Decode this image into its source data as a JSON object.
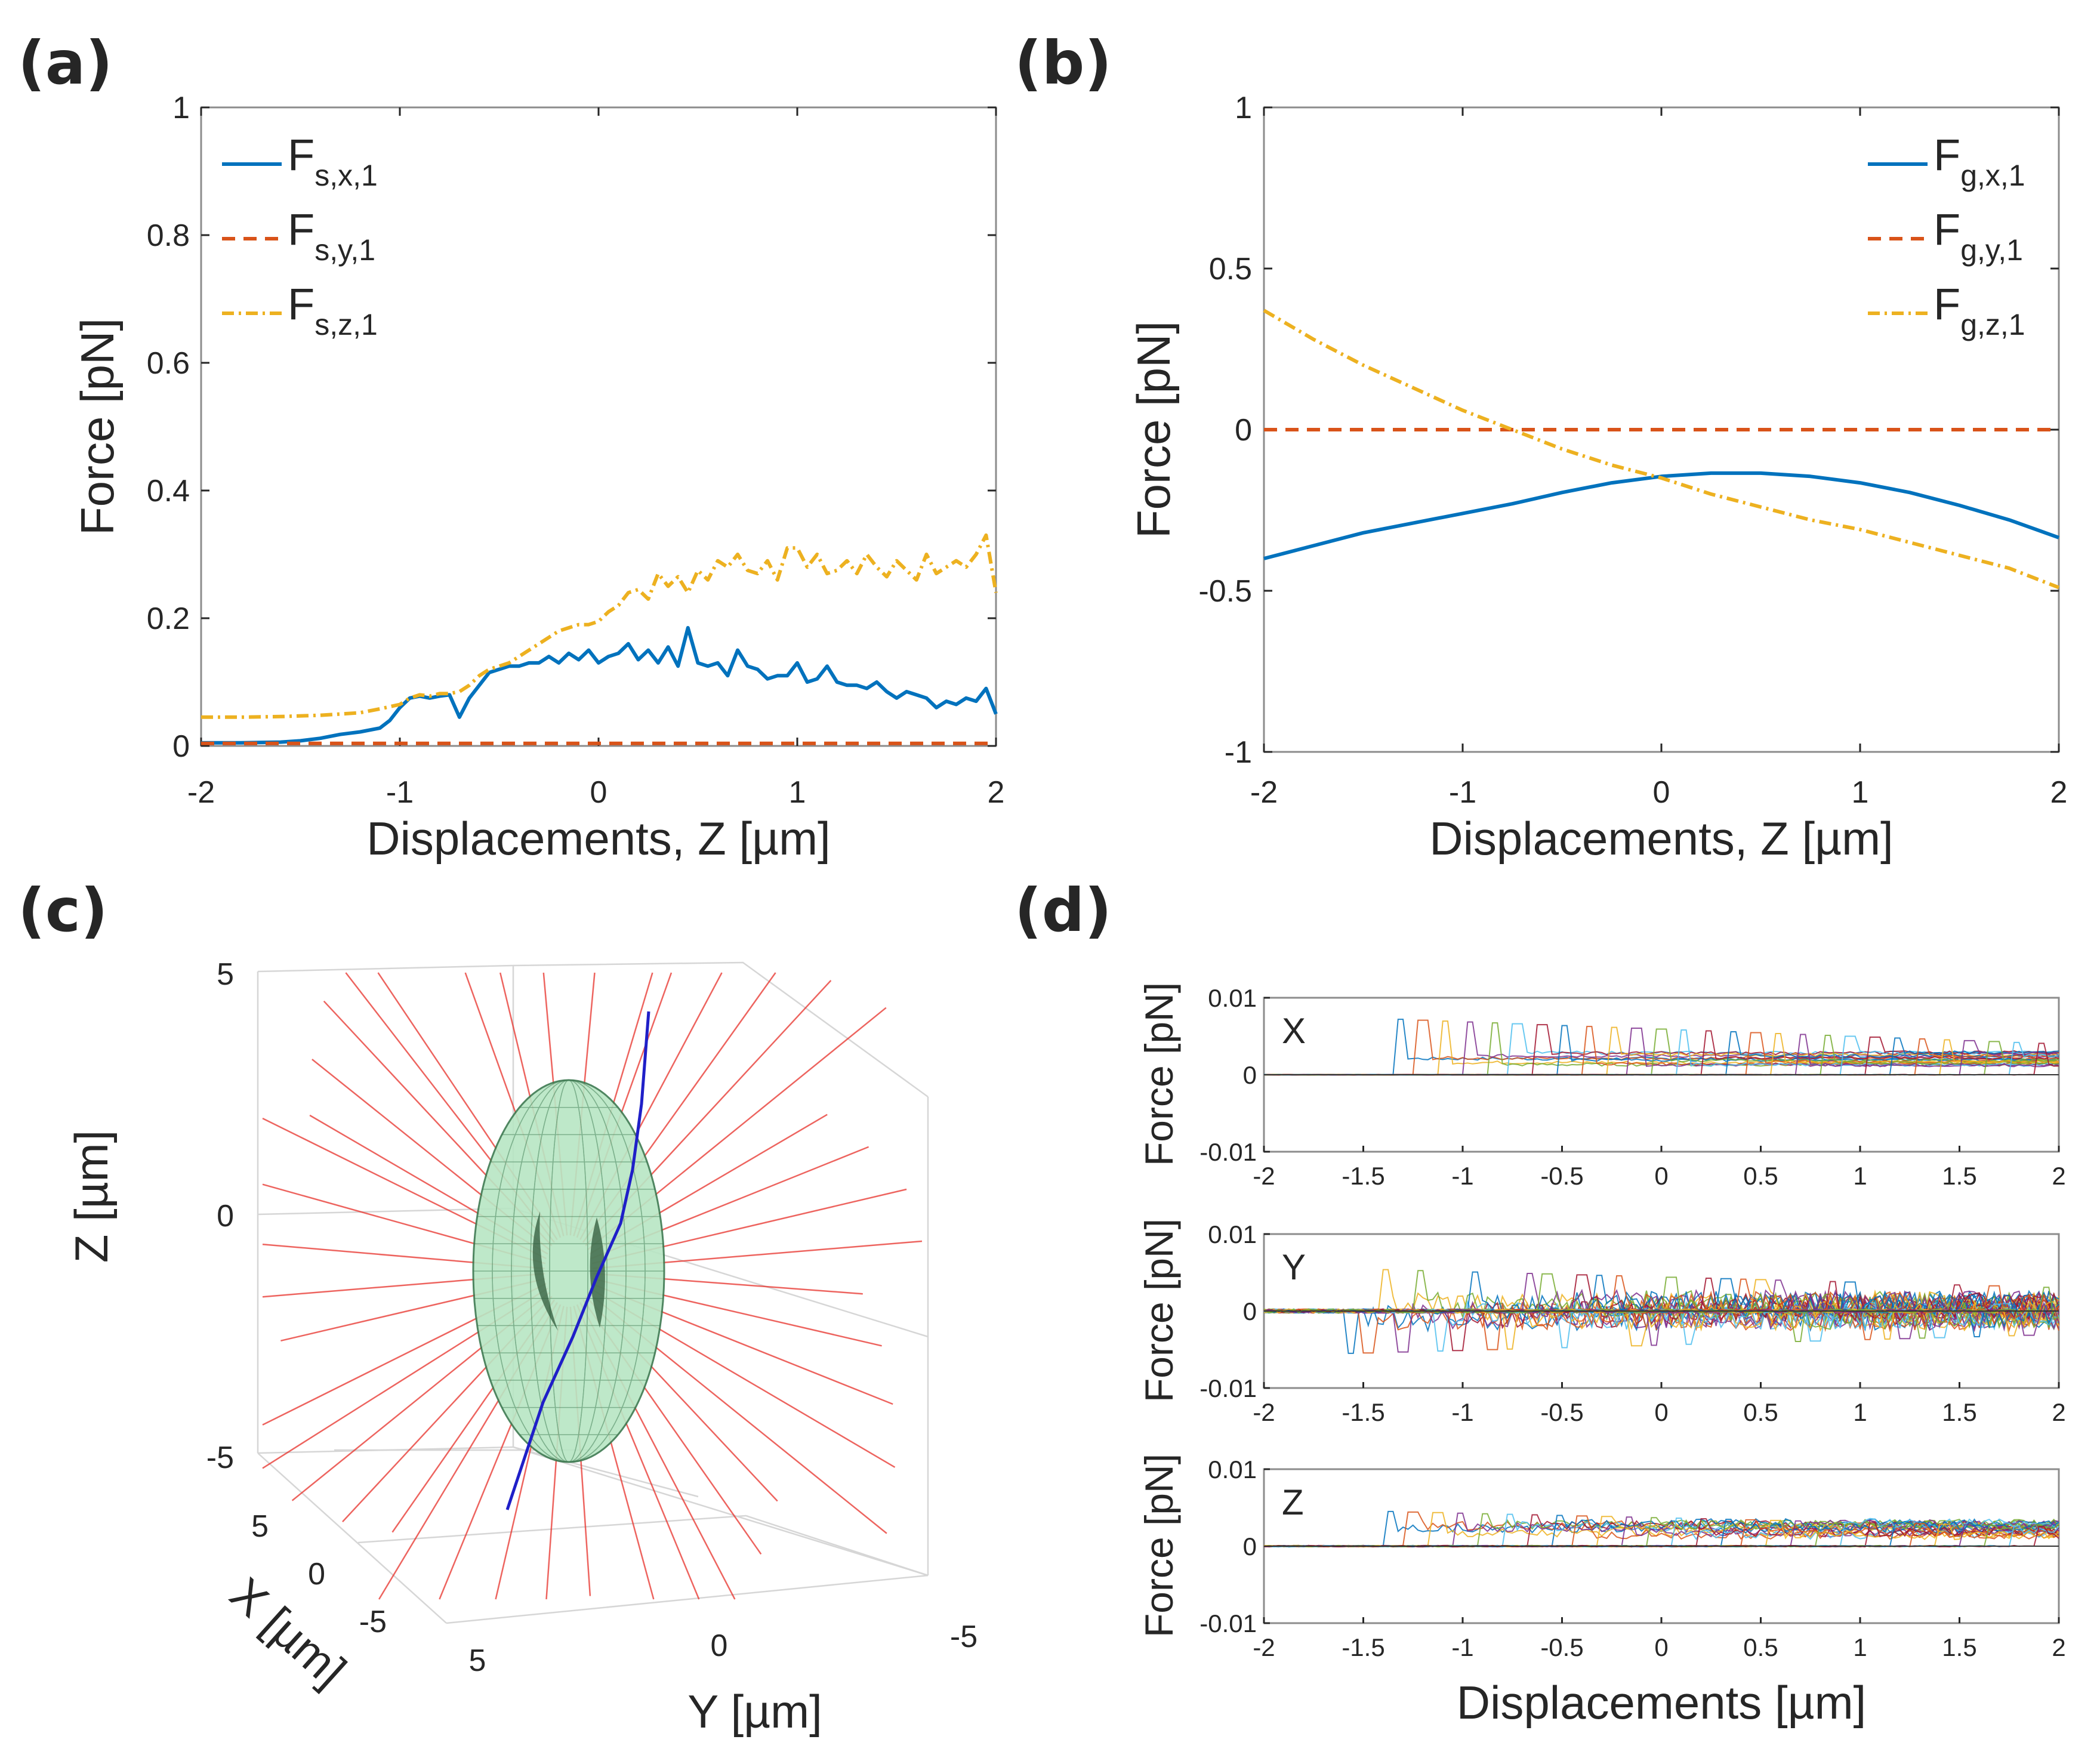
{
  "figure": {
    "panels": {
      "a": {
        "label": "(a)"
      },
      "b": {
        "label": "(b)"
      },
      "c": {
        "label": "(c)"
      },
      "d": {
        "label": "(d)"
      }
    }
  },
  "colors": {
    "blue": "#0072BD",
    "orange": "#D95319",
    "yellow": "#EDB120",
    "axis": "#262626",
    "frame": "#8c8c8c",
    "ellipsoid_fill": "#b8e6c4",
    "ellipsoid_mesh": "#3d7a50",
    "path3d": "#1f1fc8",
    "rays": "#e8312a"
  },
  "chart_data": [
    {
      "id": "a",
      "type": "line",
      "xlabel": "Displacements, Z  [µm]",
      "ylabel": "Force [pN]",
      "xlim": [
        -2,
        2
      ],
      "ylim": [
        0,
        1
      ],
      "xticks": [
        -2,
        -1,
        0,
        1,
        2
      ],
      "yticks": [
        0,
        0.2,
        0.4,
        0.6,
        0.8,
        1
      ],
      "xtick_labels": [
        "-2",
        "-1",
        "0",
        "1",
        "2"
      ],
      "ytick_labels": [
        "0",
        "0.2",
        "0.4",
        "0.6",
        "0.8",
        "1"
      ],
      "legend_position": "top-left",
      "series": [
        {
          "name": "F",
          "sub": "s,x,1",
          "style": "solid",
          "color": "blue",
          "x": [
            -2,
            -1.8,
            -1.6,
            -1.5,
            -1.4,
            -1.3,
            -1.2,
            -1.1,
            -1.05,
            -1.0,
            -0.95,
            -0.9,
            -0.85,
            -0.8,
            -0.75,
            -0.7,
            -0.65,
            -0.6,
            -0.55,
            -0.5,
            -0.45,
            -0.4,
            -0.35,
            -0.3,
            -0.25,
            -0.2,
            -0.15,
            -0.1,
            -0.05,
            0.0,
            0.05,
            0.1,
            0.15,
            0.2,
            0.25,
            0.3,
            0.35,
            0.4,
            0.45,
            0.5,
            0.55,
            0.6,
            0.65,
            0.7,
            0.75,
            0.8,
            0.85,
            0.9,
            0.95,
            1.0,
            1.05,
            1.1,
            1.15,
            1.2,
            1.25,
            1.3,
            1.35,
            1.4,
            1.45,
            1.5,
            1.55,
            1.6,
            1.65,
            1.7,
            1.75,
            1.8,
            1.85,
            1.9,
            1.95,
            2.0
          ],
          "values": [
            0.005,
            0.005,
            0.006,
            0.008,
            0.012,
            0.018,
            0.022,
            0.028,
            0.04,
            0.06,
            0.075,
            0.078,
            0.075,
            0.078,
            0.08,
            0.045,
            0.075,
            0.095,
            0.115,
            0.12,
            0.125,
            0.125,
            0.13,
            0.13,
            0.14,
            0.13,
            0.145,
            0.135,
            0.15,
            0.13,
            0.14,
            0.145,
            0.16,
            0.135,
            0.15,
            0.13,
            0.155,
            0.125,
            0.185,
            0.13,
            0.125,
            0.13,
            0.11,
            0.15,
            0.125,
            0.12,
            0.105,
            0.11,
            0.11,
            0.13,
            0.1,
            0.105,
            0.125,
            0.1,
            0.095,
            0.095,
            0.09,
            0.1,
            0.085,
            0.075,
            0.085,
            0.08,
            0.075,
            0.06,
            0.07,
            0.065,
            0.075,
            0.07,
            0.09,
            0.05
          ]
        },
        {
          "name": "F",
          "sub": "s,y,1",
          "style": "dashed",
          "color": "orange",
          "x": [
            -2,
            2
          ],
          "values": [
            0.004,
            0.004
          ]
        },
        {
          "name": "F",
          "sub": "s,z,1",
          "style": "dashdot",
          "color": "yellow",
          "x": [
            -2,
            -1.8,
            -1.6,
            -1.4,
            -1.2,
            -1.1,
            -1.0,
            -0.95,
            -0.9,
            -0.85,
            -0.8,
            -0.75,
            -0.7,
            -0.65,
            -0.6,
            -0.55,
            -0.5,
            -0.45,
            -0.4,
            -0.35,
            -0.3,
            -0.25,
            -0.2,
            -0.15,
            -0.1,
            -0.05,
            0.0,
            0.05,
            0.1,
            0.15,
            0.2,
            0.25,
            0.3,
            0.35,
            0.4,
            0.45,
            0.5,
            0.55,
            0.6,
            0.65,
            0.7,
            0.75,
            0.8,
            0.85,
            0.9,
            0.95,
            1.0,
            1.05,
            1.1,
            1.15,
            1.2,
            1.25,
            1.3,
            1.35,
            1.4,
            1.45,
            1.5,
            1.55,
            1.6,
            1.65,
            1.7,
            1.75,
            1.8,
            1.85,
            1.9,
            1.95,
            2.0
          ],
          "values": [
            0.045,
            0.045,
            0.046,
            0.048,
            0.052,
            0.058,
            0.065,
            0.075,
            0.08,
            0.078,
            0.082,
            0.082,
            0.085,
            0.095,
            0.11,
            0.12,
            0.125,
            0.13,
            0.14,
            0.15,
            0.16,
            0.17,
            0.18,
            0.185,
            0.19,
            0.19,
            0.195,
            0.21,
            0.22,
            0.24,
            0.245,
            0.23,
            0.27,
            0.25,
            0.265,
            0.24,
            0.275,
            0.26,
            0.29,
            0.28,
            0.3,
            0.275,
            0.27,
            0.29,
            0.26,
            0.31,
            0.31,
            0.28,
            0.3,
            0.27,
            0.275,
            0.29,
            0.27,
            0.3,
            0.28,
            0.265,
            0.29,
            0.275,
            0.26,
            0.3,
            0.27,
            0.28,
            0.29,
            0.28,
            0.3,
            0.33,
            0.24
          ]
        }
      ]
    },
    {
      "id": "b",
      "type": "line",
      "xlabel": "Displacements, Z  [µm]",
      "ylabel": "Force [pN]",
      "xlim": [
        -2,
        2
      ],
      "ylim": [
        -1,
        1
      ],
      "xticks": [
        -2,
        -1,
        0,
        1,
        2
      ],
      "yticks": [
        -1,
        -0.5,
        0,
        0.5,
        1
      ],
      "xtick_labels": [
        "-2",
        "-1",
        "0",
        "1",
        "2"
      ],
      "ytick_labels": [
        "-1",
        "-0.5",
        "0",
        "0.5",
        "1"
      ],
      "legend_position": "top-right",
      "series": [
        {
          "name": "F",
          "sub": "g,x,1",
          "style": "solid",
          "color": "blue",
          "x": [
            -2,
            -1.75,
            -1.5,
            -1.25,
            -1.0,
            -0.75,
            -0.5,
            -0.25,
            0.0,
            0.25,
            0.5,
            0.75,
            1.0,
            1.25,
            1.5,
            1.75,
            2.0
          ],
          "values": [
            -0.4,
            -0.36,
            -0.32,
            -0.29,
            -0.26,
            -0.23,
            -0.195,
            -0.165,
            -0.145,
            -0.135,
            -0.135,
            -0.145,
            -0.165,
            -0.195,
            -0.235,
            -0.28,
            -0.335
          ]
        },
        {
          "name": "F",
          "sub": "g,y,1",
          "style": "dashed",
          "color": "orange",
          "x": [
            -2,
            2
          ],
          "values": [
            0,
            0
          ]
        },
        {
          "name": "F",
          "sub": "g,z,1",
          "style": "dashdot",
          "color": "yellow",
          "x": [
            -2,
            -1.75,
            -1.5,
            -1.25,
            -1.0,
            -0.75,
            -0.5,
            -0.25,
            0.0,
            0.25,
            0.5,
            0.75,
            1.0,
            1.25,
            1.5,
            1.75,
            2.0
          ],
          "values": [
            0.37,
            0.28,
            0.2,
            0.13,
            0.06,
            0.0,
            -0.06,
            -0.11,
            -0.15,
            -0.2,
            -0.24,
            -0.28,
            -0.31,
            -0.35,
            -0.39,
            -0.43,
            -0.49
          ]
        }
      ]
    },
    {
      "id": "c",
      "type": "scatter",
      "chart_kind": "3d",
      "xlabel": "X [µm]",
      "ylabel": "Y [µm]",
      "zlabel": "Z [µm]",
      "xlim": [
        -5,
        5
      ],
      "ylim": [
        -5,
        5
      ],
      "zlim": [
        -5,
        5
      ],
      "xtick_labels": [
        "5",
        "0",
        "-5"
      ],
      "ytick_labels": [
        "5",
        "0",
        "-5"
      ],
      "ztick_labels": [
        "5",
        "0",
        "-5"
      ],
      "objects": [
        "ellipsoid",
        "particle trajectory",
        "rays"
      ]
    },
    {
      "id": "d",
      "type": "line",
      "xlabel": "Displacements  [µm]",
      "ylabel": "Force [pN]",
      "xlim": [
        -2,
        2
      ],
      "ylim": [
        -0.01,
        0.01
      ],
      "xtick_labels": [
        "-2",
        "-1.5",
        "-1",
        "-0.5",
        "0",
        "0.5",
        "1",
        "1.5",
        "2"
      ],
      "ytick_labels": [
        "0.01",
        "0",
        "-0.01"
      ],
      "subplots": [
        {
          "name": "X",
          "onset": -1.35,
          "peak": 0.0072,
          "baseline": 0.0,
          "late_level": 0.003,
          "spread": 0.0004
        },
        {
          "name": "Y",
          "onset": -1.6,
          "peak": 0.0055,
          "baseline": 0.0,
          "late_level": 0.001,
          "spread": 0.0035
        },
        {
          "name": "Z",
          "onset": -1.4,
          "peak": 0.0045,
          "baseline": 0.0,
          "late_level": 0.003,
          "spread": 0.0012
        }
      ]
    }
  ]
}
